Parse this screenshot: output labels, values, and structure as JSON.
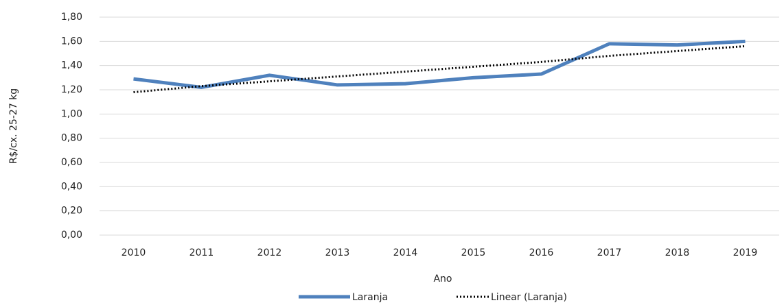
{
  "chart_data": {
    "type": "line",
    "y_label": "R$/cx. 25-27 kg",
    "x_label": "Ano",
    "categories": [
      "2010",
      "2011",
      "2012",
      "2013",
      "2014",
      "2015",
      "2016",
      "2017",
      "2018",
      "2019"
    ],
    "series": [
      {
        "name": "Laranja",
        "color": "#4f81bd",
        "style": "solid",
        "values": [
          1.29,
          1.22,
          1.32,
          1.24,
          1.25,
          1.3,
          1.33,
          1.58,
          1.57,
          1.6
        ]
      },
      {
        "name": "Linear (Laranja)",
        "color": "#000000",
        "style": "dotted",
        "values": [
          1.18,
          1.23,
          1.27,
          1.31,
          1.35,
          1.39,
          1.43,
          1.48,
          1.52,
          1.56
        ]
      }
    ],
    "ylim": [
      0,
      1.8
    ],
    "yticks": [
      {
        "value": 0,
        "label": "0,00"
      },
      {
        "value": 0.2,
        "label": "0,20"
      },
      {
        "value": 0.4,
        "label": "0,40"
      },
      {
        "value": 0.6,
        "label": "0,60"
      },
      {
        "value": 0.8,
        "label": "0,80"
      },
      {
        "value": 1.0,
        "label": "1,00"
      },
      {
        "value": 1.2,
        "label": "1,20"
      },
      {
        "value": 1.4,
        "label": "1,40"
      },
      {
        "value": 1.6,
        "label": "1,60"
      },
      {
        "value": 1.8,
        "label": "1,80"
      }
    ],
    "grid": true,
    "legend": "bottom"
  }
}
